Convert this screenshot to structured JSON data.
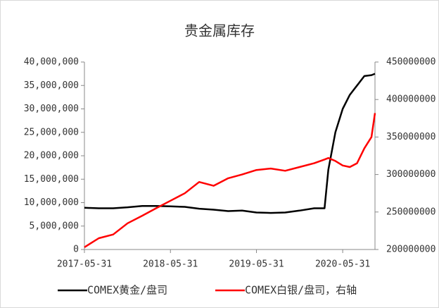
{
  "chart_data": {
    "type": "line",
    "title": "贵金属库存",
    "x": [
      "2017-05-31",
      "2017-07-31",
      "2017-09-30",
      "2017-11-30",
      "2018-01-31",
      "2018-03-31",
      "2018-05-31",
      "2018-07-31",
      "2018-09-30",
      "2018-11-30",
      "2019-01-31",
      "2019-03-31",
      "2019-05-31",
      "2019-07-31",
      "2019-09-30",
      "2019-11-30",
      "2020-01-31",
      "2020-03-15",
      "2020-03-31",
      "2020-04-30",
      "2020-05-31",
      "2020-06-30",
      "2020-07-31",
      "2020-08-31",
      "2020-09-30",
      "2020-10-15"
    ],
    "series": [
      {
        "name": "COMEX黄金/盘司",
        "color": "#000000",
        "values": [
          8900000,
          8800000,
          8800000,
          9000000,
          9300000,
          9300000,
          9200000,
          9100000,
          8700000,
          8500000,
          8200000,
          8300000,
          7900000,
          7800000,
          7900000,
          8300000,
          8800000,
          8800000,
          17000000,
          25000000,
          30000000,
          33000000,
          35000000,
          37000000,
          37200000,
          37500000
        ]
      },
      {
        "name": "COMEX白银/盘司，右轴",
        "color": "#ff0000",
        "axis": "y2",
        "values": [
          203000000,
          215000000,
          220000000,
          235000000,
          245000000,
          255000000,
          265000000,
          275000000,
          290000000,
          285000000,
          295000000,
          300000000,
          306000000,
          308000000,
          305000000,
          310000000,
          315000000,
          320000000,
          322000000,
          318000000,
          312000000,
          310000000,
          315000000,
          335000000,
          350000000,
          382000000
        ]
      }
    ],
    "xlim": [
      "2017-05-31",
      "2020-10-15"
    ],
    "xticks": [
      "2017-05-31",
      "2018-05-31",
      "2019-05-31",
      "2020-05-31"
    ],
    "ylim": [
      0,
      40000000
    ],
    "yticks": [
      0,
      {
        "value": 5000000,
        "label": "5,000,000"
      },
      {
        "value": 10000000,
        "label": "10,000,000"
      },
      {
        "value": 15000000,
        "label": "15,000,000"
      },
      {
        "value": 20000000,
        "label": "20,000,000"
      },
      {
        "value": 25000000,
        "label": "25,000,000"
      },
      {
        "value": 30000000,
        "label": "30,000,000"
      },
      {
        "value": 35000000,
        "label": "35,000,000"
      },
      {
        "value": 40000000,
        "label": "40,000,000"
      }
    ],
    "y2lim": [
      200000000,
      450000000
    ],
    "y2ticks": [
      200000000,
      250000000,
      300000000,
      350000000,
      400000000,
      450000000
    ],
    "legend": "bottom"
  }
}
